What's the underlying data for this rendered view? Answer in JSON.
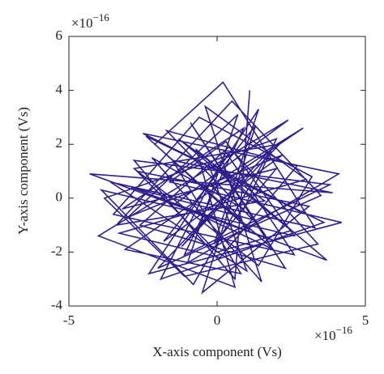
{
  "chart_data": {
    "type": "line",
    "x_label": "X-axis component (Vs)",
    "y_label": "Y-axis component (Vs)",
    "x_multiplier": {
      "base": "×10",
      "power": "−16"
    },
    "y_multiplier": {
      "base": "×10",
      "power": "−16"
    },
    "xlim": [
      -5,
      5
    ],
    "xticks": [
      -5,
      0,
      5
    ],
    "ylim": [
      -4,
      6
    ],
    "yticks": [
      -4,
      -2,
      0,
      2,
      4,
      6
    ],
    "series": [
      {
        "color": "#2e1f8c",
        "x": [
          0.5,
          -1.2,
          2.1,
          -2.8,
          1.4,
          3.2,
          -0.6,
          -3.5,
          2.6,
          0.3,
          -1.9,
          3.6,
          -2.4,
          1.1,
          -0.2,
          2.9,
          -3.1,
          0.8,
          -1.5,
          3.9,
          -4.3,
          1.7,
          -0.9,
          2.3,
          -2.6,
          0.4,
          3.4,
          -1.1,
          -3.8,
          2.0,
          0.9,
          -2.2,
          1.5,
          -0.4,
          3.0,
          -3.3,
          0.1,
          2.7,
          -1.7,
          1.2,
          -2.9,
          3.7,
          -0.7,
          0.6,
          -4.0,
          2.4,
          -1.4,
          1.9,
          -2.1,
          0.2,
          3.3,
          -3.6,
          1.0,
          -0.3,
          2.8,
          -2.5,
          4.1,
          -1.0,
          0.7,
          -3.0,
          2.2,
          -1.8,
          1.3,
          -0.5,
          3.1,
          -2.7,
          0.0,
          2.5,
          -1.3,
          1.6,
          -3.4,
          0.5,
          3.5,
          -2.0,
          1.8,
          -0.8,
          -3.9,
          2.6,
          0.3,
          -1.6,
          4.2,
          -2.3,
          1.4,
          -0.1,
          2.0,
          -3.2,
          0.9,
          -1.1,
          3.8,
          -2.8,
          0.6,
          1.1
        ],
        "values": [
          0.3,
          -1.8,
          2.0,
          1.1,
          -2.5,
          0.8,
          3.0,
          -0.6,
          -2.1,
          1.7,
          -3.0,
          -0.9,
          2.3,
          -1.2,
          0.5,
          2.6,
          -1.9,
          -2.8,
          1.4,
          0.2,
          0.9,
          -1.5,
          2.8,
          -2.6,
          -1.0,
          1.9,
          -1.7,
          -2.9,
          0.0,
          2.2,
          -0.4,
          1.5,
          -3.1,
          3.4,
          0.7,
          -1.3,
          -2.2,
          1.2,
          2.5,
          -0.8,
          0.4,
          -2.3,
          1.8,
          -3.3,
          -1.4,
          2.9,
          -0.2,
          -1.9,
          2.0,
          4.3,
          -1.1,
          0.6,
          -2.7,
          1.3,
          -0.5,
          2.4,
          0.9,
          -2.4,
          3.1,
          -0.7,
          1.6,
          -1.6,
          2.7,
          -3.5,
          -0.3,
          1.0,
          -2.0,
          -1.2,
          2.2,
          -0.1,
          -1.0,
          3.6,
          0.1,
          -2.6,
          1.8,
          -3.2,
          0.3,
          -1.4,
          2.1,
          0.6,
          -0.9,
          -2.8,
          3.3,
          -1.7,
          1.1,
          -0.4,
          2.6,
          -2.1,
          0.5,
          1.4,
          -3.0,
          4.0
        ]
      }
    ]
  }
}
